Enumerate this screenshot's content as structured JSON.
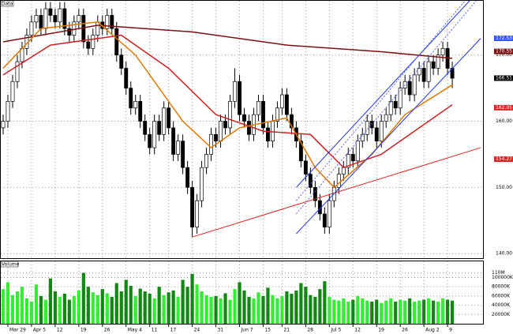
{
  "chart_data": {
    "type": "candlestick",
    "title": "Data",
    "volume_title": "Volume",
    "xlim": [
      -0.5,
      101.5
    ],
    "ylim": [
      139.3,
      178.2
    ],
    "yticks": [
      {
        "value": 170,
        "label": "170.00"
      },
      {
        "value": 160,
        "label": "160.00"
      },
      {
        "value": 150,
        "label": "150.00"
      },
      {
        "value": 140,
        "label": "140.00"
      }
    ],
    "xticks": [
      {
        "value": 1,
        "label": "Mar 29"
      },
      {
        "value": 6,
        "label": "Apr 5"
      },
      {
        "value": 11,
        "label": "12"
      },
      {
        "value": 16,
        "label": "19"
      },
      {
        "value": 21,
        "label": "26"
      },
      {
        "value": 26,
        "label": "May 4"
      },
      {
        "value": 31,
        "label": "11"
      },
      {
        "value": 35,
        "label": "17"
      },
      {
        "value": 40,
        "label": "24"
      },
      {
        "value": 45,
        "label": "31"
      },
      {
        "value": 50,
        "label": "Jun 7"
      },
      {
        "value": 55,
        "label": "15"
      },
      {
        "value": 59,
        "label": "21"
      },
      {
        "value": 64,
        "label": "28"
      },
      {
        "value": 69,
        "label": "Jul 5"
      },
      {
        "value": 74,
        "label": "12"
      },
      {
        "value": 79,
        "label": "19"
      },
      {
        "value": 84,
        "label": "26"
      },
      {
        "value": 89,
        "label": "Aug 2"
      },
      {
        "value": 94,
        "label": "9"
      }
    ],
    "grid": true,
    "up_color": "#ffffff",
    "down_color": "#000000",
    "volume_up_color": "#33ee33",
    "volume_down_color": "#118811",
    "open": [
      159,
      160,
      163,
      166,
      169,
      171,
      173,
      175,
      176,
      174,
      177,
      176,
      175,
      177,
      174,
      173,
      175,
      176,
      172,
      171,
      173,
      175,
      174,
      176,
      174,
      170,
      168,
      165,
      162,
      163,
      160,
      158,
      156,
      160,
      158,
      162,
      159,
      155,
      157,
      153,
      150,
      144,
      148,
      153,
      155,
      158,
      157,
      160,
      159,
      163,
      166,
      161,
      160,
      158,
      161,
      163,
      159,
      157,
      160,
      162,
      164,
      161,
      159,
      157,
      154,
      152,
      150,
      148,
      146,
      144,
      148,
      150,
      152,
      153,
      155,
      154,
      157,
      158,
      160,
      159,
      157,
      160,
      161,
      163,
      162,
      165,
      166,
      164,
      167,
      168,
      166,
      169,
      168,
      170,
      171,
      168
    ],
    "high": [
      161,
      164,
      167,
      170,
      172,
      174,
      176,
      177,
      177,
      178,
      178,
      177,
      178,
      178,
      175,
      176,
      177,
      177,
      173,
      174,
      176,
      176,
      177,
      177,
      175,
      171,
      169,
      166,
      164,
      164,
      161,
      159,
      161,
      161,
      163,
      163,
      160,
      158,
      158,
      154,
      151,
      149,
      154,
      156,
      159,
      159,
      161,
      161,
      164,
      168,
      167,
      162,
      161,
      162,
      164,
      164,
      160,
      161,
      163,
      165,
      165,
      162,
      160,
      158,
      155,
      153,
      151,
      149,
      147,
      149,
      151,
      153,
      154,
      156,
      156,
      158,
      159,
      161,
      161,
      160,
      161,
      162,
      164,
      164,
      166,
      167,
      167,
      168,
      169,
      169,
      170,
      170,
      171,
      172,
      172,
      169
    ],
    "low": [
      158,
      159,
      162,
      165,
      168,
      170,
      172,
      174,
      173,
      173,
      175,
      174,
      174,
      173,
      172,
      172,
      174,
      171,
      170,
      170,
      172,
      173,
      173,
      173,
      169,
      167,
      164,
      161,
      161,
      159,
      157,
      155,
      155,
      157,
      157,
      158,
      154,
      154,
      152,
      149,
      142.5,
      143,
      147,
      152,
      154,
      156,
      156,
      158,
      158,
      162,
      160,
      159,
      157,
      157,
      160,
      158,
      156,
      156,
      159,
      161,
      160,
      158,
      156,
      153,
      151,
      149,
      147,
      145,
      143,
      143,
      147,
      149,
      151,
      152,
      153,
      153,
      156,
      157,
      158,
      156,
      156,
      159,
      160,
      161,
      161,
      164,
      163,
      163,
      166,
      165,
      165,
      167,
      167,
      169,
      167,
      165
    ],
    "close": [
      160,
      163,
      166,
      169,
      171,
      173,
      175,
      176,
      174,
      177,
      176,
      175,
      177,
      174,
      173,
      175,
      176,
      172,
      171,
      173,
      175,
      174,
      176,
      174,
      170,
      168,
      165,
      162,
      163,
      160,
      158,
      156,
      160,
      158,
      162,
      159,
      155,
      157,
      153,
      150,
      144,
      148,
      153,
      155,
      158,
      157,
      160,
      159,
      163,
      166,
      161,
      160,
      158,
      161,
      163,
      159,
      157,
      160,
      162,
      164,
      161,
      159,
      157,
      154,
      152,
      150,
      148,
      146,
      144,
      148,
      150,
      152,
      153,
      155,
      154,
      157,
      158,
      160,
      159,
      157,
      160,
      161,
      163,
      162,
      165,
      166,
      164,
      167,
      168,
      166,
      169,
      168,
      170,
      171,
      168,
      166.5
    ],
    "volume": [
      75000,
      90000,
      62000,
      70000,
      80000,
      55000,
      48000,
      85000,
      60000,
      52000,
      98000,
      70000,
      58000,
      65000,
      52000,
      60000,
      72000,
      110000,
      80000,
      68000,
      62000,
      75000,
      66000,
      58000,
      88000,
      70000,
      95000,
      82000,
      60000,
      76000,
      70000,
      65000,
      55000,
      80000,
      62000,
      68000,
      72000,
      58000,
      95000,
      80000,
      108000,
      85000,
      70000,
      62000,
      58000,
      60000,
      55000,
      66000,
      52000,
      75000,
      90000,
      72000,
      58000,
      55000,
      68000,
      60000,
      78000,
      62000,
      55000,
      60000,
      70000,
      65000,
      72000,
      88000,
      80000,
      62000,
      58000,
      75000,
      92000,
      58000,
      52000,
      50000,
      55000,
      48000,
      52000,
      60000,
      55000,
      50000,
      48000,
      52000,
      45000,
      50000,
      55000,
      48000,
      52000,
      50000,
      55000,
      48000,
      50000,
      52000,
      55000,
      50000,
      48000,
      55000,
      52000,
      50000
    ],
    "volume_ylim": [
      0,
      135000
    ],
    "volume_ticks": [
      {
        "value": 110000,
        "label": "110M"
      },
      {
        "value": 100000,
        "label": "100000K"
      },
      {
        "value": 80000,
        "label": "80000K"
      },
      {
        "value": 60000,
        "label": "60000K"
      },
      {
        "value": 40000,
        "label": "40000K"
      },
      {
        "value": 20000,
        "label": "20000K"
      }
    ],
    "overlays": [
      {
        "color": "#7a1010",
        "x": [
          0,
          20,
          40,
          60,
          80,
          95
        ],
        "values": [
          172,
          174.5,
          173.5,
          171.5,
          170.5,
          169.5
        ]
      },
      {
        "color": "#cc2222",
        "x": [
          0,
          10,
          25,
          35,
          45,
          55,
          65,
          72,
          80,
          88,
          95
        ],
        "values": [
          167,
          171.5,
          173,
          168,
          161,
          158.5,
          158,
          153,
          155,
          159,
          162.5
        ]
      },
      {
        "color": "#e07800",
        "x": [
          0,
          8,
          20,
          28,
          38,
          44,
          50,
          60,
          66,
          70,
          78,
          85,
          95
        ],
        "values": [
          168,
          174,
          175,
          170,
          160,
          156,
          159,
          160.5,
          153,
          150,
          155,
          161,
          165.5
        ]
      },
      {
        "color": "#dd2222",
        "x": [
          40,
          101
        ],
        "values": [
          142.5,
          156
        ]
      },
      {
        "color": "#2233ee",
        "x": [
          62,
          101
        ],
        "values": [
          143,
          172.5
        ]
      },
      {
        "color": "#2233ee",
        "x": [
          62,
          101
        ],
        "values": [
          150,
          180
        ]
      },
      {
        "color": "#5566ff",
        "dashed": true,
        "x": [
          62,
          101
        ],
        "values": [
          146,
          179
        ]
      },
      {
        "color": "#5566ff",
        "dashed": true,
        "x": [
          62,
          101
        ],
        "values": [
          148,
          181
        ]
      }
    ],
    "price_flags": [
      {
        "value": 172.53,
        "label": "172.53",
        "color": "#3355ff"
      },
      {
        "value": 170.55,
        "label": "170.55",
        "color": "#7a1010"
      },
      {
        "value": 166.51,
        "label": "166.51",
        "color": "#000000"
      },
      {
        "value": 162.05,
        "label": "162.05",
        "color": "#dd2222"
      },
      {
        "value": 154.27,
        "label": "154.27",
        "color": "#dd2222"
      }
    ]
  }
}
